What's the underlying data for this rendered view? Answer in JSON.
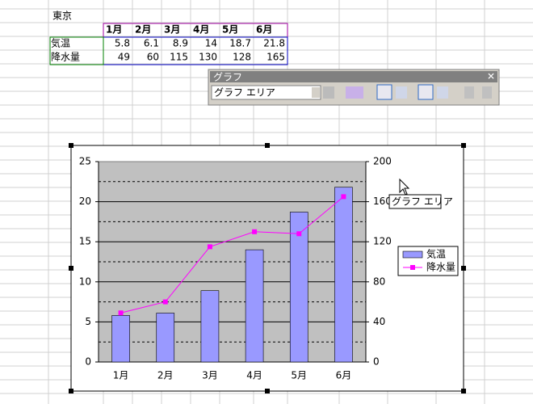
{
  "sheet": {
    "title": "東京",
    "table": {
      "header": [
        "1月",
        "2月",
        "3月",
        "4月",
        "5月",
        "6月"
      ],
      "rows": [
        [
          "気温",
          5.8,
          6.1,
          8.9,
          14,
          18.7,
          21.8
        ],
        [
          "降水量",
          49,
          60,
          115,
          130,
          128,
          165
        ]
      ]
    }
  },
  "toolbar": {
    "title": "グラフ",
    "dropdown": "グラフ エリア"
  },
  "tooltip": "グラフ エリア",
  "chart_data": {
    "type": "bar",
    "categories": [
      "1月",
      "2月",
      "3月",
      "4月",
      "5月",
      "6月"
    ],
    "series": [
      {
        "name": "気温",
        "color": "#9999ff",
        "values": [
          5.8,
          6.1,
          8.9,
          14,
          18.7,
          21.8
        ]
      },
      {
        "name": "降水量",
        "color": "#ff00ff",
        "type": "line",
        "axis": "y2",
        "values": [
          49,
          60,
          115,
          130,
          128,
          165
        ]
      }
    ],
    "ylim": [
      0,
      25
    ],
    "yticks": [
      0,
      5,
      10,
      15,
      20,
      25
    ],
    "y2lim": [
      0,
      200
    ],
    "y2ticks": [
      0,
      40,
      80,
      120,
      160,
      200
    ],
    "grid": true,
    "minor_grid": true,
    "legend": "right"
  }
}
